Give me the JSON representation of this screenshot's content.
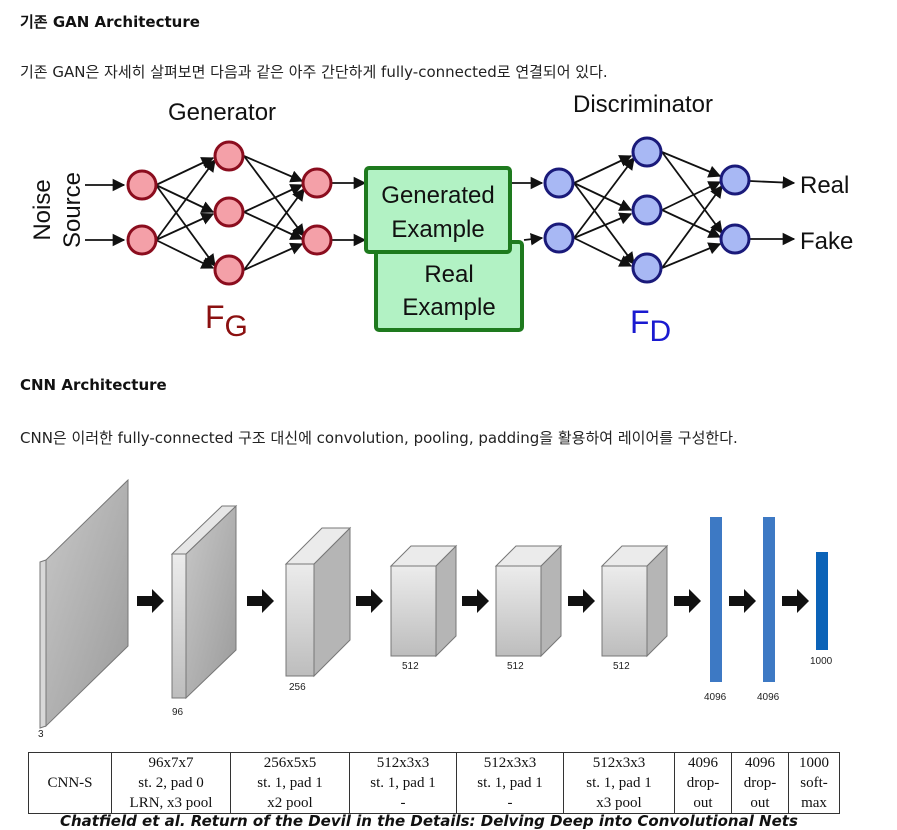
{
  "gan_section": {
    "heading": "기존 GAN Architecture",
    "text": "기존 GAN은 자세히 살펴보면 다음과 같은 아주 간단하게 fully-connected로 연결되어 있다."
  },
  "gan_diagram": {
    "generator_label": "Generator",
    "discriminator_label": "Discriminator",
    "noise_line1": "Noise",
    "noise_line2": "Source",
    "generated_line1": "Generated",
    "generated_line2": "Example",
    "real_line1": "Real",
    "real_line2": "Example",
    "fg_main": "F",
    "fg_sub": "G",
    "fd_main": "F",
    "fd_sub": "D",
    "output_real": "Real",
    "output_fake": "Fake",
    "colors": {
      "generator_node": "#f4a0a8",
      "generator_stroke": "#8b0d1e",
      "discriminator_node": "#a8b8f4",
      "discriminator_stroke": "#1a1a7a",
      "example_fill": "#b2f2c4",
      "example_stroke": "#1e7a1e",
      "fg_color": "#8b1010",
      "fd_color": "#1a1ad0"
    }
  },
  "cnn_section": {
    "heading": "CNN Architecture",
    "text": "CNN은 이러한 fully-connected 구조 대신에 convolution, pooling, padding을 활용하여 레이어를 구성한다."
  },
  "cnn_diagram": {
    "labels": {
      "input": "3",
      "conv1": "96",
      "conv2": "256",
      "conv3": "512",
      "conv4": "512",
      "conv5": "512",
      "fc6": "4096",
      "fc7": "4096",
      "fc8": "1000"
    },
    "colors": {
      "fc_blue": "#3d79c4",
      "fc_dark_blue": "#0b63b8",
      "arrow": "#111111"
    }
  },
  "cnn_table": {
    "name": "CNN-S",
    "columns": [
      [
        "96x7x7",
        "st. 2, pad 0",
        "LRN, x3 pool"
      ],
      [
        "256x5x5",
        "st. 1, pad 1",
        "x2 pool"
      ],
      [
        "512x3x3",
        "st. 1, pad 1",
        "-"
      ],
      [
        "512x3x3",
        "st. 1, pad 1",
        "-"
      ],
      [
        "512x3x3",
        "st. 1, pad 1",
        "x3 pool"
      ],
      [
        "4096",
        "drop-",
        "out"
      ],
      [
        "4096",
        "drop-",
        "out"
      ],
      [
        "1000",
        "soft-",
        "max"
      ]
    ]
  },
  "caption": "Chatfield et al. Return of the Devil in the Details: Delving Deep into Convolutional Nets"
}
